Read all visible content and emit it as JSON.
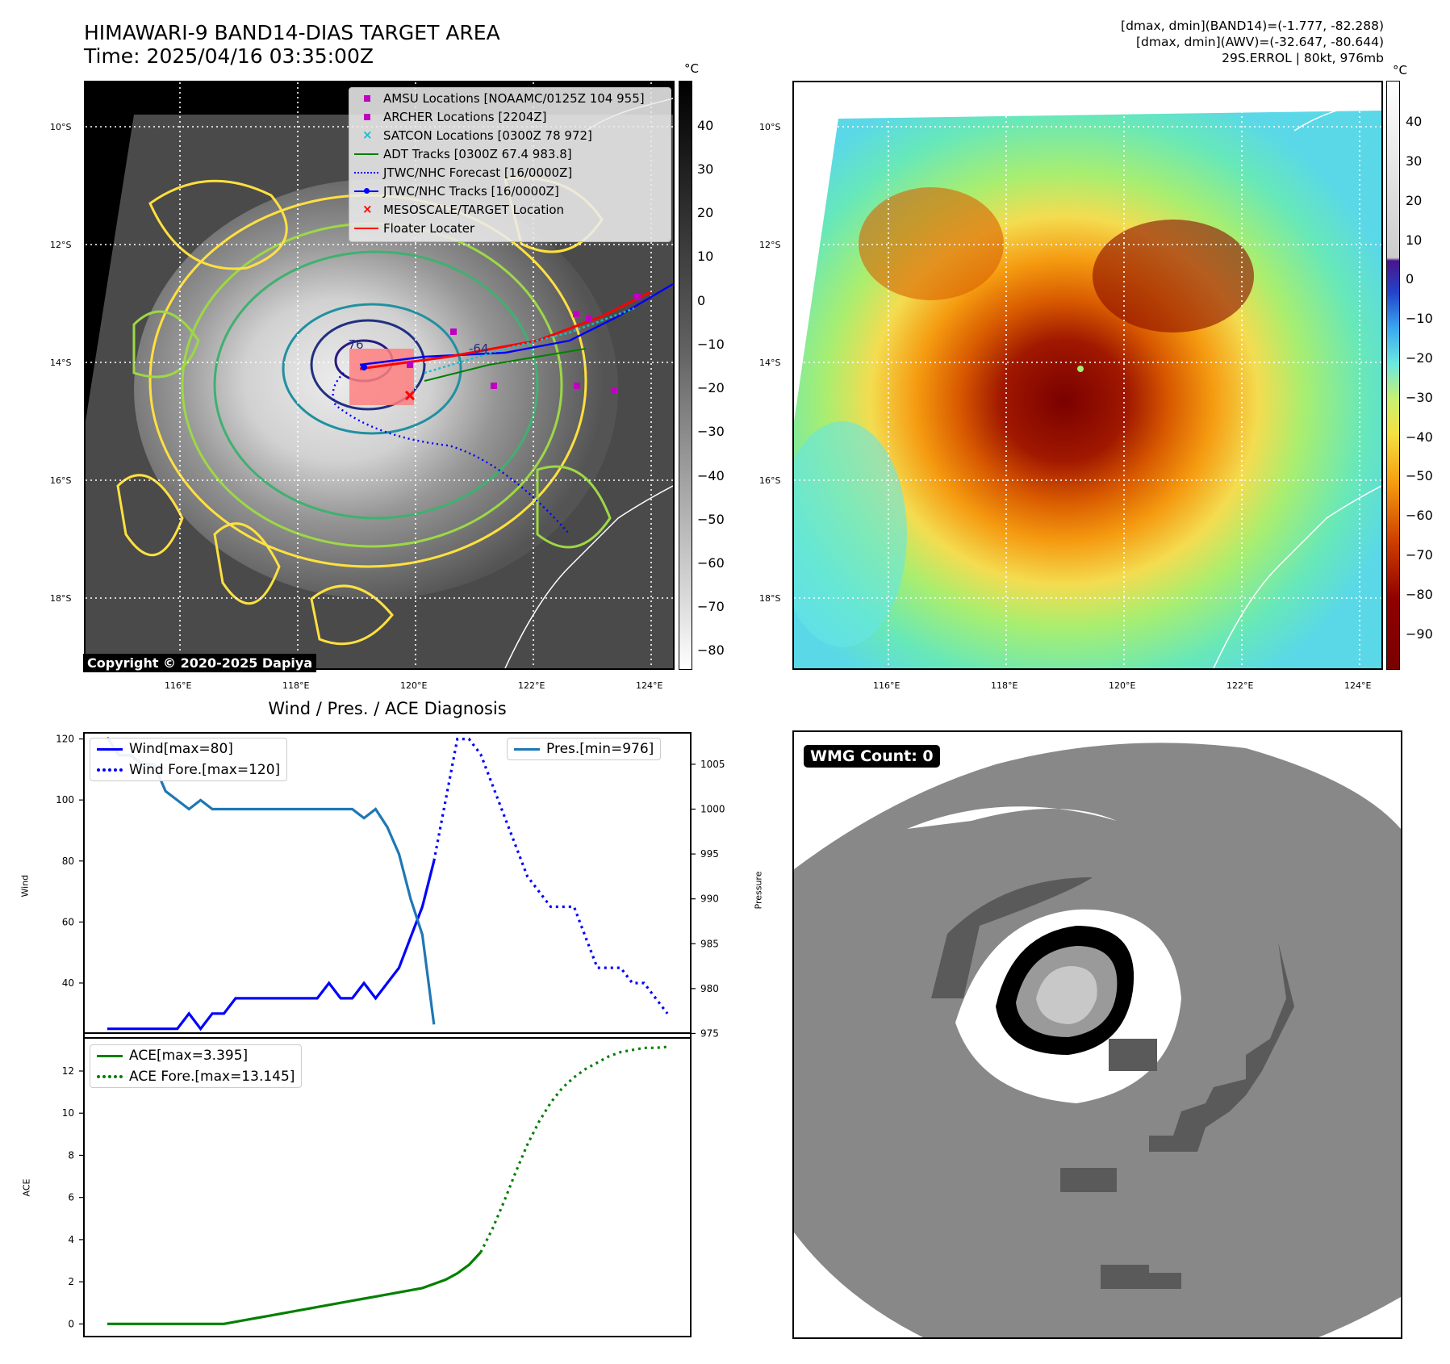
{
  "header": {
    "title_line1": "HIMAWARI-9 BAND14-DIAS TARGET AREA",
    "title_line2": "Time: 2025/04/16 03:35:00Z",
    "stat_line1": "[dmax, dmin](BAND14)=(-1.777, -82.288)",
    "stat_line2": "[dmax, dmin](AWV)=(-32.647, -80.644)",
    "stat_line3": "29S.ERROL | 80kt, 976mb"
  },
  "map_axes": {
    "lat_labels": [
      "10°S",
      "12°S",
      "14°S",
      "16°S",
      "18°S"
    ],
    "lon_labels": [
      "116°E",
      "118°E",
      "120°E",
      "122°E",
      "124°E"
    ]
  },
  "colorbar_left": {
    "unit": "°C",
    "ticks": [
      "40",
      "30",
      "20",
      "10",
      "0",
      "−10",
      "−20",
      "−30",
      "−40",
      "−50",
      "−60",
      "−70",
      "−80"
    ]
  },
  "colorbar_right": {
    "unit": "°C",
    "ticks": [
      "40",
      "30",
      "20",
      "10",
      "0",
      "−10",
      "−20",
      "−30",
      "−40",
      "−50",
      "−60",
      "−70",
      "−80",
      "−90"
    ]
  },
  "ir_legend": {
    "items": [
      {
        "label": "AMSU Locations [NOAAMC/0125Z 104 955]",
        "color": "#c000c0",
        "marker": "square"
      },
      {
        "label": "ARCHER Locations [2204Z]",
        "color": "#c000c0",
        "marker": "square"
      },
      {
        "label": "SATCON Locations [0300Z 78 972]",
        "color": "#17becf",
        "marker": "x"
      },
      {
        "label": "ADT Tracks [0300Z 67.4 983.8]",
        "color": "#008000",
        "marker": "line"
      },
      {
        "label": "JTWC/NHC Forecast [16/0000Z]",
        "color": "#0000ff",
        "marker": "dotted"
      },
      {
        "label": "JTWC/NHC Tracks [16/0000Z]",
        "color": "#0000ff",
        "marker": "line-dot"
      },
      {
        "label": "MESOSCALE/TARGET Location",
        "color": "#ff0000",
        "marker": "x"
      },
      {
        "label": "Floater Locater",
        "color": "#ff0000",
        "marker": "line"
      }
    ]
  },
  "copyright": "Copyright © 2020-2025 Dapiya",
  "contour_labels": [
    "-76",
    "-64"
  ],
  "wmg": {
    "label": "WMG Count: 0"
  },
  "chart_data": [
    {
      "type": "line",
      "title": "Wind / Pres. / ACE Diagnosis",
      "ylabel": "Wind",
      "y2label": "Pressure",
      "ylim": [
        22,
        122
      ],
      "y2lim": [
        974.5,
        1008.5
      ],
      "x": [
        0,
        1,
        2,
        3,
        4,
        5,
        6,
        7,
        8,
        9,
        10,
        11,
        12,
        13,
        14,
        15,
        16,
        17,
        18,
        19,
        20,
        21,
        22,
        23,
        24,
        25,
        26,
        27,
        28,
        29,
        30,
        31,
        32,
        33,
        34,
        35,
        36,
        37,
        38,
        39,
        40,
        41,
        42,
        43,
        44,
        45,
        46,
        47,
        48
      ],
      "series": [
        {
          "name": "Wind[max=80]",
          "color": "#0000ff",
          "style": "solid",
          "axis": "left",
          "values": [
            25,
            25,
            25,
            25,
            25,
            25,
            25,
            30,
            25,
            30,
            30,
            35,
            35,
            35,
            35,
            35,
            35,
            35,
            35,
            40,
            35,
            35,
            40,
            35,
            40,
            45,
            55,
            65,
            80,
            null,
            null,
            null,
            null,
            null,
            null,
            null,
            null,
            null,
            null,
            null,
            null,
            null,
            null,
            null,
            null,
            null,
            null,
            null,
            null
          ]
        },
        {
          "name": "Wind Fore.[max=120]",
          "color": "#0000ff",
          "style": "dotted",
          "axis": "left",
          "values": [
            null,
            null,
            null,
            null,
            null,
            null,
            null,
            null,
            null,
            null,
            null,
            null,
            null,
            null,
            null,
            null,
            null,
            null,
            null,
            null,
            null,
            null,
            null,
            null,
            null,
            null,
            null,
            null,
            80,
            100,
            120,
            120,
            115,
            105,
            95,
            85,
            75,
            70,
            65,
            65,
            65,
            55,
            45,
            45,
            45,
            40,
            40,
            35,
            30
          ]
        },
        {
          "name": "Pres.[min=976]",
          "color": "#1f77b4",
          "style": "solid",
          "axis": "right",
          "values": [
            1008,
            1006,
            1006,
            1005,
            1005,
            1002,
            1001,
            1000,
            1001,
            1000,
            1000,
            1000,
            1000,
            1000,
            1000,
            1000,
            1000,
            1000,
            1000,
            1000,
            1000,
            1000,
            999,
            1000,
            998,
            995,
            990,
            986,
            976,
            null,
            null,
            null,
            null,
            null,
            null,
            null,
            null,
            null,
            null,
            null,
            null,
            null,
            null,
            null,
            null,
            null,
            null,
            null,
            null
          ]
        }
      ],
      "y_ticks": [
        40,
        60,
        80,
        100,
        120
      ],
      "y2_ticks": [
        975,
        980,
        985,
        990,
        995,
        1000,
        1005
      ]
    },
    {
      "type": "line",
      "ylabel": "ACE",
      "ylim": [
        -0.6,
        13.8
      ],
      "x": [
        0,
        1,
        2,
        3,
        4,
        5,
        6,
        7,
        8,
        9,
        10,
        11,
        12,
        13,
        14,
        15,
        16,
        17,
        18,
        19,
        20,
        21,
        22,
        23,
        24,
        25,
        26,
        27,
        28,
        29,
        30,
        31,
        32,
        33,
        34,
        35,
        36,
        37,
        38,
        39,
        40,
        41,
        42,
        43,
        44,
        45,
        46,
        47,
        48
      ],
      "series": [
        {
          "name": "ACE[max=3.395]",
          "color": "#008000",
          "style": "solid",
          "values": [
            0,
            0,
            0,
            0,
            0,
            0,
            0,
            0,
            0,
            0,
            0,
            0.1,
            0.2,
            0.3,
            0.4,
            0.5,
            0.6,
            0.7,
            0.8,
            0.9,
            1.0,
            1.1,
            1.2,
            1.3,
            1.4,
            1.5,
            1.6,
            1.7,
            1.9,
            2.1,
            2.4,
            2.8,
            3.4,
            null,
            null,
            null,
            null,
            null,
            null,
            null,
            null,
            null,
            null,
            null,
            null,
            null,
            null,
            null,
            null
          ]
        },
        {
          "name": "ACE Fore.[max=13.145]",
          "color": "#008000",
          "style": "dotted",
          "values": [
            null,
            null,
            null,
            null,
            null,
            null,
            null,
            null,
            null,
            null,
            null,
            null,
            null,
            null,
            null,
            null,
            null,
            null,
            null,
            null,
            null,
            null,
            null,
            null,
            null,
            null,
            null,
            null,
            null,
            null,
            null,
            null,
            3.4,
            4.5,
            5.8,
            7.2,
            8.5,
            9.6,
            10.5,
            11.2,
            11.7,
            12.1,
            12.4,
            12.7,
            12.9,
            13.0,
            13.1,
            13.1,
            13.145
          ]
        }
      ],
      "y_ticks": [
        0,
        2,
        4,
        6,
        8,
        10,
        12
      ]
    }
  ]
}
